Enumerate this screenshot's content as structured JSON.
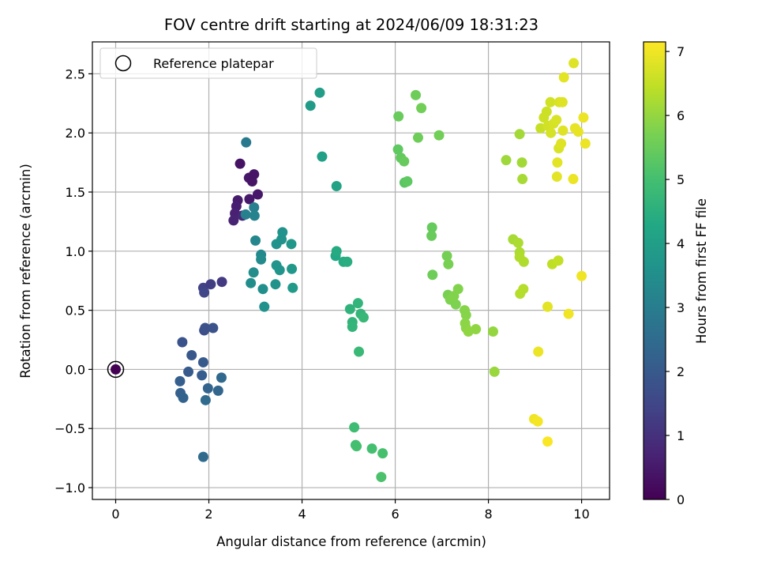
{
  "chart_data": {
    "type": "scatter",
    "title": "FOV centre drift starting at 2024/06/09 18:31:23",
    "xlabel": "Angular distance from reference (arcmin)",
    "ylabel": "Rotation from reference (arcmin)",
    "xlim": [
      -0.5,
      10.6
    ],
    "ylim": [
      -1.1,
      2.77
    ],
    "xticks": [
      0,
      2,
      4,
      6,
      8,
      10
    ],
    "xtick_labels": [
      "0",
      "2",
      "4",
      "6",
      "8",
      "10"
    ],
    "yticks": [
      -1.0,
      -0.5,
      0.0,
      0.5,
      1.0,
      1.5,
      2.0,
      2.5
    ],
    "ytick_labels": [
      "−1.0",
      "−0.5",
      "0.0",
      "0.5",
      "1.0",
      "1.5",
      "2.0",
      "2.5"
    ],
    "grid": true,
    "legend": {
      "position": "top-left",
      "entries": [
        "Reference platepar"
      ]
    },
    "reference_point": {
      "x": 0.0,
      "y": 0.0,
      "hours": 0.0,
      "label": "Reference platepar"
    },
    "colorbar": {
      "label": "Hours from first FF file",
      "colormap": "viridis",
      "range": [
        0,
        7.15
      ],
      "ticks": [
        0,
        1,
        2,
        3,
        4,
        5,
        6,
        7
      ],
      "tick_labels": [
        "0",
        "1",
        "2",
        "3",
        "4",
        "5",
        "6",
        "7"
      ]
    },
    "points": [
      {
        "x": 2.62,
        "y": 1.43,
        "hours": 0.55
      },
      {
        "x": 2.59,
        "y": 1.38,
        "hours": 0.6
      },
      {
        "x": 2.56,
        "y": 1.32,
        "hours": 0.65
      },
      {
        "x": 2.67,
        "y": 1.74,
        "hours": 0.35
      },
      {
        "x": 2.86,
        "y": 1.62,
        "hours": 0.45
      },
      {
        "x": 2.93,
        "y": 1.59,
        "hours": 0.4
      },
      {
        "x": 2.97,
        "y": 1.65,
        "hours": 0.38
      },
      {
        "x": 2.87,
        "y": 1.44,
        "hours": 0.5
      },
      {
        "x": 3.05,
        "y": 1.48,
        "hours": 0.45
      },
      {
        "x": 2.53,
        "y": 1.26,
        "hours": 0.7
      },
      {
        "x": 2.72,
        "y": 1.3,
        "hours": 0.8
      },
      {
        "x": 1.88,
        "y": 0.69,
        "hours": 1.4
      },
      {
        "x": 1.9,
        "y": 0.65,
        "hours": 1.5
      },
      {
        "x": 2.04,
        "y": 0.72,
        "hours": 1.3
      },
      {
        "x": 2.28,
        "y": 0.74,
        "hours": 1.2
      },
      {
        "x": 1.9,
        "y": 0.33,
        "hours": 1.7
      },
      {
        "x": 1.92,
        "y": 0.35,
        "hours": 1.75
      },
      {
        "x": 2.09,
        "y": 0.35,
        "hours": 1.8
      },
      {
        "x": 1.43,
        "y": 0.23,
        "hours": 1.85
      },
      {
        "x": 1.63,
        "y": 0.12,
        "hours": 1.95
      },
      {
        "x": 1.88,
        "y": 0.06,
        "hours": 2.0
      },
      {
        "x": 1.56,
        "y": -0.02,
        "hours": 2.05
      },
      {
        "x": 1.85,
        "y": -0.05,
        "hours": 2.1
      },
      {
        "x": 1.38,
        "y": -0.1,
        "hours": 2.15
      },
      {
        "x": 1.39,
        "y": -0.2,
        "hours": 2.2
      },
      {
        "x": 1.45,
        "y": -0.24,
        "hours": 2.25
      },
      {
        "x": 1.98,
        "y": -0.16,
        "hours": 2.3
      },
      {
        "x": 2.2,
        "y": -0.18,
        "hours": 2.35
      },
      {
        "x": 2.27,
        "y": -0.07,
        "hours": 2.4
      },
      {
        "x": 1.93,
        "y": -0.26,
        "hours": 2.45
      },
      {
        "x": 1.88,
        "y": -0.74,
        "hours": 2.5
      },
      {
        "x": 2.8,
        "y": 1.92,
        "hours": 2.9
      },
      {
        "x": 2.97,
        "y": 1.37,
        "hours": 3.05
      },
      {
        "x": 2.79,
        "y": 1.31,
        "hours": 3.1
      },
      {
        "x": 2.98,
        "y": 1.3,
        "hours": 3.15
      },
      {
        "x": 3.0,
        "y": 1.09,
        "hours": 3.3
      },
      {
        "x": 3.12,
        "y": 0.97,
        "hours": 3.35
      },
      {
        "x": 3.12,
        "y": 0.93,
        "hours": 3.4
      },
      {
        "x": 2.96,
        "y": 0.82,
        "hours": 3.45
      },
      {
        "x": 2.9,
        "y": 0.73,
        "hours": 3.5
      },
      {
        "x": 3.16,
        "y": 0.68,
        "hours": 3.55
      },
      {
        "x": 3.19,
        "y": 0.53,
        "hours": 3.6
      },
      {
        "x": 3.43,
        "y": 0.72,
        "hours": 3.65
      },
      {
        "x": 3.45,
        "y": 0.88,
        "hours": 3.7
      },
      {
        "x": 3.52,
        "y": 0.84,
        "hours": 3.7
      },
      {
        "x": 3.45,
        "y": 1.06,
        "hours": 3.6
      },
      {
        "x": 3.56,
        "y": 1.1,
        "hours": 3.65
      },
      {
        "x": 3.58,
        "y": 1.16,
        "hours": 3.6
      },
      {
        "x": 3.77,
        "y": 1.06,
        "hours": 3.75
      },
      {
        "x": 3.78,
        "y": 0.85,
        "hours": 3.8
      },
      {
        "x": 3.8,
        "y": 0.69,
        "hours": 3.85
      },
      {
        "x": 4.18,
        "y": 2.23,
        "hours": 3.9
      },
      {
        "x": 4.38,
        "y": 2.34,
        "hours": 3.95
      },
      {
        "x": 4.43,
        "y": 1.8,
        "hours": 4.0
      },
      {
        "x": 4.74,
        "y": 1.55,
        "hours": 4.15
      },
      {
        "x": 4.72,
        "y": 0.96,
        "hours": 4.3
      },
      {
        "x": 4.74,
        "y": 1.0,
        "hours": 4.35
      },
      {
        "x": 4.89,
        "y": 0.91,
        "hours": 4.4
      },
      {
        "x": 4.97,
        "y": 0.91,
        "hours": 4.45
      },
      {
        "x": 5.03,
        "y": 0.51,
        "hours": 4.6
      },
      {
        "x": 5.08,
        "y": 0.4,
        "hours": 4.65
      },
      {
        "x": 5.08,
        "y": 0.36,
        "hours": 4.7
      },
      {
        "x": 5.2,
        "y": 0.56,
        "hours": 4.65
      },
      {
        "x": 5.26,
        "y": 0.47,
        "hours": 4.7
      },
      {
        "x": 5.32,
        "y": 0.44,
        "hours": 4.75
      },
      {
        "x": 5.22,
        "y": 0.15,
        "hours": 4.8
      },
      {
        "x": 5.12,
        "y": -0.49,
        "hours": 4.9
      },
      {
        "x": 5.15,
        "y": -0.64,
        "hours": 4.95
      },
      {
        "x": 5.17,
        "y": -0.65,
        "hours": 5.0
      },
      {
        "x": 5.5,
        "y": -0.67,
        "hours": 5.0
      },
      {
        "x": 5.73,
        "y": -0.71,
        "hours": 5.05
      },
      {
        "x": 5.7,
        "y": -0.91,
        "hours": 5.1
      },
      {
        "x": 6.44,
        "y": 2.32,
        "hours": 5.55
      },
      {
        "x": 6.56,
        "y": 2.21,
        "hours": 5.6
      },
      {
        "x": 6.07,
        "y": 2.14,
        "hours": 5.5
      },
      {
        "x": 6.49,
        "y": 1.96,
        "hours": 5.55
      },
      {
        "x": 6.94,
        "y": 1.98,
        "hours": 5.6
      },
      {
        "x": 6.06,
        "y": 1.86,
        "hours": 5.35
      },
      {
        "x": 6.12,
        "y": 1.79,
        "hours": 5.4
      },
      {
        "x": 6.19,
        "y": 1.76,
        "hours": 5.45
      },
      {
        "x": 6.2,
        "y": 1.58,
        "hours": 5.3
      },
      {
        "x": 6.26,
        "y": 1.59,
        "hours": 5.35
      },
      {
        "x": 6.79,
        "y": 1.2,
        "hours": 5.45
      },
      {
        "x": 6.78,
        "y": 1.13,
        "hours": 5.5
      },
      {
        "x": 6.8,
        "y": 0.8,
        "hours": 5.55
      },
      {
        "x": 7.11,
        "y": 0.96,
        "hours": 5.65
      },
      {
        "x": 7.14,
        "y": 0.89,
        "hours": 5.7
      },
      {
        "x": 7.13,
        "y": 0.63,
        "hours": 5.7
      },
      {
        "x": 7.18,
        "y": 0.59,
        "hours": 5.75
      },
      {
        "x": 7.3,
        "y": 0.55,
        "hours": 5.75
      },
      {
        "x": 7.35,
        "y": 0.68,
        "hours": 5.8
      },
      {
        "x": 7.26,
        "y": 0.62,
        "hours": 5.8
      },
      {
        "x": 7.49,
        "y": 0.5,
        "hours": 5.85
      },
      {
        "x": 7.52,
        "y": 0.46,
        "hours": 5.85
      },
      {
        "x": 7.5,
        "y": 0.39,
        "hours": 5.9
      },
      {
        "x": 7.52,
        "y": 0.35,
        "hours": 5.9
      },
      {
        "x": 7.57,
        "y": 0.32,
        "hours": 5.95
      },
      {
        "x": 7.73,
        "y": 0.34,
        "hours": 5.95
      },
      {
        "x": 8.1,
        "y": 0.32,
        "hours": 6.0
      },
      {
        "x": 8.13,
        "y": -0.02,
        "hours": 6.05
      },
      {
        "x": 8.38,
        "y": 1.77,
        "hours": 6.1
      },
      {
        "x": 8.67,
        "y": 1.99,
        "hours": 6.15
      },
      {
        "x": 8.72,
        "y": 1.75,
        "hours": 6.15
      },
      {
        "x": 8.73,
        "y": 1.61,
        "hours": 6.2
      },
      {
        "x": 8.53,
        "y": 1.1,
        "hours": 6.2
      },
      {
        "x": 8.64,
        "y": 1.07,
        "hours": 6.25
      },
      {
        "x": 8.67,
        "y": 0.99,
        "hours": 6.25
      },
      {
        "x": 8.67,
        "y": 0.95,
        "hours": 6.3
      },
      {
        "x": 8.76,
        "y": 0.91,
        "hours": 6.3
      },
      {
        "x": 8.75,
        "y": 0.68,
        "hours": 6.35
      },
      {
        "x": 8.68,
        "y": 0.64,
        "hours": 6.35
      },
      {
        "x": 9.37,
        "y": 0.89,
        "hours": 6.45
      },
      {
        "x": 9.5,
        "y": 0.92,
        "hours": 6.5
      },
      {
        "x": 9.12,
        "y": 2.04,
        "hours": 6.55
      },
      {
        "x": 9.19,
        "y": 2.13,
        "hours": 6.6
      },
      {
        "x": 9.25,
        "y": 2.18,
        "hours": 6.6
      },
      {
        "x": 9.33,
        "y": 2.26,
        "hours": 6.65
      },
      {
        "x": 9.28,
        "y": 2.06,
        "hours": 6.65
      },
      {
        "x": 9.34,
        "y": 2.0,
        "hours": 6.7
      },
      {
        "x": 9.4,
        "y": 2.08,
        "hours": 6.7
      },
      {
        "x": 9.46,
        "y": 2.11,
        "hours": 6.75
      },
      {
        "x": 9.52,
        "y": 2.26,
        "hours": 6.75
      },
      {
        "x": 9.59,
        "y": 2.26,
        "hours": 6.8
      },
      {
        "x": 9.83,
        "y": 2.59,
        "hours": 6.8
      },
      {
        "x": 9.62,
        "y": 2.47,
        "hours": 6.85
      },
      {
        "x": 9.51,
        "y": 1.87,
        "hours": 6.75
      },
      {
        "x": 9.56,
        "y": 1.91,
        "hours": 6.8
      },
      {
        "x": 9.6,
        "y": 2.02,
        "hours": 6.8
      },
      {
        "x": 9.48,
        "y": 1.75,
        "hours": 6.85
      },
      {
        "x": 9.47,
        "y": 1.63,
        "hours": 6.85
      },
      {
        "x": 9.86,
        "y": 2.04,
        "hours": 6.9
      },
      {
        "x": 9.93,
        "y": 2.01,
        "hours": 6.9
      },
      {
        "x": 10.04,
        "y": 2.13,
        "hours": 6.95
      },
      {
        "x": 10.08,
        "y": 1.91,
        "hours": 6.95
      },
      {
        "x": 9.82,
        "y": 1.61,
        "hours": 6.95
      },
      {
        "x": 10.0,
        "y": 0.79,
        "hours": 7.0
      },
      {
        "x": 9.27,
        "y": 0.53,
        "hours": 6.85
      },
      {
        "x": 9.72,
        "y": 0.47,
        "hours": 7.0
      },
      {
        "x": 9.07,
        "y": 0.15,
        "hours": 6.95
      },
      {
        "x": 8.98,
        "y": -0.42,
        "hours": 7.0
      },
      {
        "x": 9.06,
        "y": -0.44,
        "hours": 7.05
      },
      {
        "x": 9.27,
        "y": -0.61,
        "hours": 7.1
      }
    ]
  }
}
